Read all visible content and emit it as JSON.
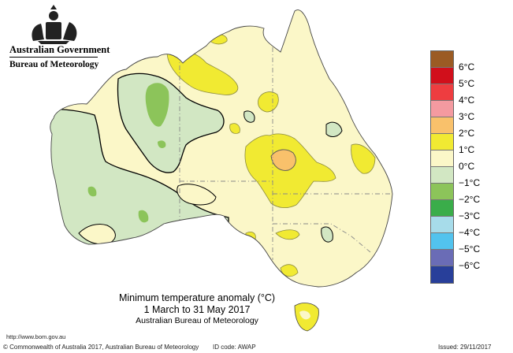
{
  "header": {
    "agency": "Australian Government",
    "bureau": "Bureau of Meteorology"
  },
  "map_title": {
    "line1": "Minimum temperature anomaly (°C)",
    "line2": "1 March to 31 May 2017",
    "line3": "Australian Bureau of Meteorology"
  },
  "legend": {
    "items": [
      {
        "label": "6°C",
        "color": "#9b5b24"
      },
      {
        "label": "5°C",
        "color": "#d10f1b"
      },
      {
        "label": "4°C",
        "color": "#ee3d40"
      },
      {
        "label": "3°C",
        "color": "#f49aa0"
      },
      {
        "label": "2°C",
        "color": "#f9c16b"
      },
      {
        "label": "1°C",
        "color": "#f1ea32"
      },
      {
        "label": "0°C",
        "color": "#fbf7c8"
      },
      {
        "label": "−1°C",
        "color": "#d2e7c3"
      },
      {
        "label": "−2°C",
        "color": "#8cc45a"
      },
      {
        "label": "−3°C",
        "color": "#3aad4a"
      },
      {
        "label": "−4°C",
        "color": "#a7dcea"
      },
      {
        "label": "−5°C",
        "color": "#52c3ee"
      },
      {
        "label": "−6°C",
        "color": "#6a6cb6"
      },
      {
        "label": "",
        "color": "#283f9a"
      }
    ]
  },
  "footer": {
    "url": "http://www.bom.gov.au",
    "copyright": "© Commonwealth of Australia 2017, Australian Bureau of Meteorology",
    "id_code": "ID code: AWAP",
    "issued": "Issued: 29/11/2017"
  }
}
